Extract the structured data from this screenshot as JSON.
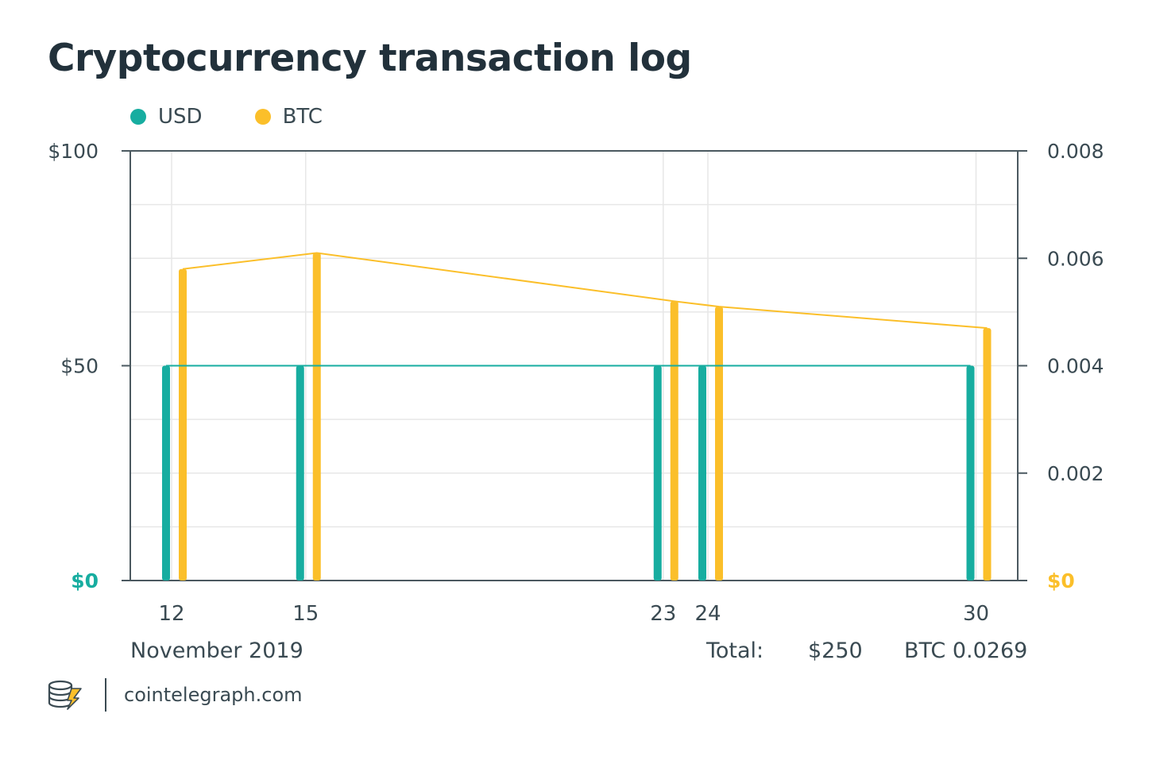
{
  "title": "Cryptocurrency transaction log",
  "colors": {
    "usd": "#17ada0",
    "btc": "#fbbf2a",
    "axis": "#4b5960",
    "grid": "#e7e7e7",
    "text": "#3a4a52",
    "title": "#22313b"
  },
  "legend": [
    {
      "label": "USD",
      "color": "#17ada0"
    },
    {
      "label": "BTC",
      "color": "#fbbf2a"
    }
  ],
  "period_label": "November 2019",
  "totals": {
    "label": "Total:",
    "usd": "$250",
    "btc": "BTC 0.0269"
  },
  "footer": {
    "site": "cointelegraph.com",
    "logo_icon": "cointelegraph-logo-icon"
  },
  "chart_data": {
    "type": "bar",
    "x": [
      12,
      15,
      23,
      24,
      30
    ],
    "x_ticks": [
      "12",
      "15",
      "23",
      "24",
      "30"
    ],
    "xlim": [
      11,
      31
    ],
    "series": [
      {
        "name": "USD",
        "axis": "left",
        "values": [
          50,
          50,
          50,
          50,
          50
        ],
        "color": "#17ada0"
      },
      {
        "name": "BTC",
        "axis": "right",
        "values": [
          0.0058,
          0.0061,
          0.0052,
          0.0051,
          0.0047
        ],
        "color": "#fbbf2a"
      }
    ],
    "left_axis": {
      "ylim": [
        0,
        100
      ],
      "ticks": [
        {
          "value": 100,
          "label": "$100"
        },
        {
          "value": 50,
          "label": "$50"
        },
        {
          "value": 0,
          "label": "$0",
          "highlight": true
        }
      ]
    },
    "right_axis": {
      "ylim": [
        0,
        0.008
      ],
      "ticks": [
        {
          "value": 0.008,
          "label": "0.008"
        },
        {
          "value": 0.006,
          "label": "0.006"
        },
        {
          "value": 0.004,
          "label": "0.004"
        },
        {
          "value": 0.002,
          "label": "0.002"
        },
        {
          "value": 0,
          "label": "$0",
          "highlight": true
        }
      ]
    },
    "grid": true,
    "legend_position": "top-left"
  }
}
